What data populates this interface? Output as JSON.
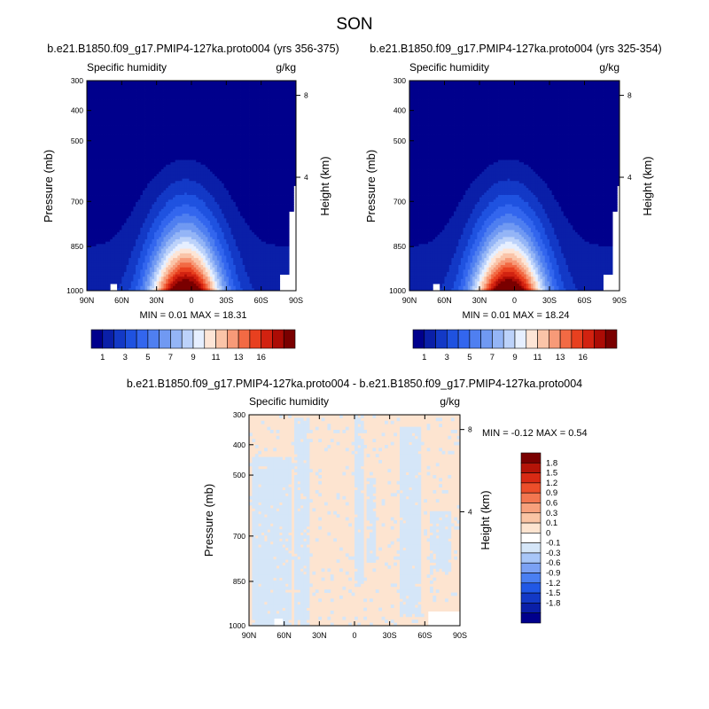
{
  "figure": {
    "season": "SON",
    "diff_title": "b.e21.B1850.f09_g17.PMIP4-127ka.proto004 - b.e21.B1850.f09_g17.PMIP4-127ka.proto004"
  },
  "colors": {
    "abs_palette": [
      "#00008c",
      "#0a1fa8",
      "#1339c6",
      "#1f52e0",
      "#3366ee",
      "#4f7ff0",
      "#7099f2",
      "#94b5f6",
      "#bcd2fa",
      "#e6efff",
      "#fde5d6",
      "#fac4a8",
      "#f79a78",
      "#f26a44",
      "#e8401f",
      "#d22210",
      "#ac0c05",
      "#7a0000"
    ],
    "diff_palette": [
      "#00008c",
      "#0a1fa8",
      "#1339c6",
      "#2158e6",
      "#4a7ff2",
      "#7ba1f4",
      "#a8c6f8",
      "#d5e6f8",
      "#ffffff",
      "#fde4d0",
      "#fac4a4",
      "#f7a07c",
      "#f27650",
      "#ec4e2a",
      "#d82a14",
      "#b41408",
      "#7a0000"
    ]
  },
  "chart_data": [
    {
      "type": "heatmap",
      "title": "b.e21.B1850.f09_g17.PMIP4-127ka.proto004 (yrs 356-375)",
      "left_label": "Specific humidity",
      "right_label": "g/kg",
      "ylabel": "Pressure (mb)",
      "y2label": "Height (km)",
      "xticks": [
        "90N",
        "60N",
        "30N",
        "0",
        "30S",
        "60S",
        "90S"
      ],
      "yticks": [
        "300",
        "400",
        "500",
        "700",
        "850",
        "1000"
      ],
      "y2ticks": [
        "8",
        "4"
      ],
      "stats": "MIN =  0.01  MAX = 18.31",
      "colorbar_labels": [
        "1",
        "3",
        "5",
        "7",
        "9",
        "11",
        "13",
        "16"
      ],
      "peak": 18.31
    },
    {
      "type": "heatmap",
      "title": "b.e21.B1850.f09_g17.PMIP4-127ka.proto004 (yrs 325-354)",
      "left_label": "Specific humidity",
      "right_label": "g/kg",
      "ylabel": "Pressure (mb)",
      "y2label": "Height (km)",
      "xticks": [
        "90N",
        "60N",
        "30N",
        "0",
        "30S",
        "60S",
        "90S"
      ],
      "yticks": [
        "300",
        "400",
        "500",
        "700",
        "850",
        "1000"
      ],
      "y2ticks": [
        "8",
        "4"
      ],
      "stats": "MIN =  0.01  MAX = 18.24",
      "colorbar_labels": [
        "1",
        "3",
        "5",
        "7",
        "9",
        "11",
        "13",
        "16"
      ],
      "peak": 18.24
    },
    {
      "type": "heatmap",
      "left_label": "Specific humidity",
      "right_label": "g/kg",
      "ylabel": "Pressure (mb)",
      "y2label": "Height (km)",
      "xticks": [
        "90N",
        "60N",
        "30N",
        "0",
        "30S",
        "60S",
        "90S"
      ],
      "yticks": [
        "300",
        "400",
        "500",
        "700",
        "850",
        "1000"
      ],
      "y2ticks": [
        "8",
        "4"
      ],
      "stats": "MIN = -0.12  MAX =   0.54",
      "colorbar_labels": [
        "1.8",
        "1.5",
        "1.2",
        "0.9",
        "0.6",
        "0.3",
        "0.1",
        "0",
        "-0.1",
        "-0.3",
        "-0.6",
        "-0.9",
        "-1.2",
        "-1.5",
        "-1.8"
      ]
    }
  ]
}
